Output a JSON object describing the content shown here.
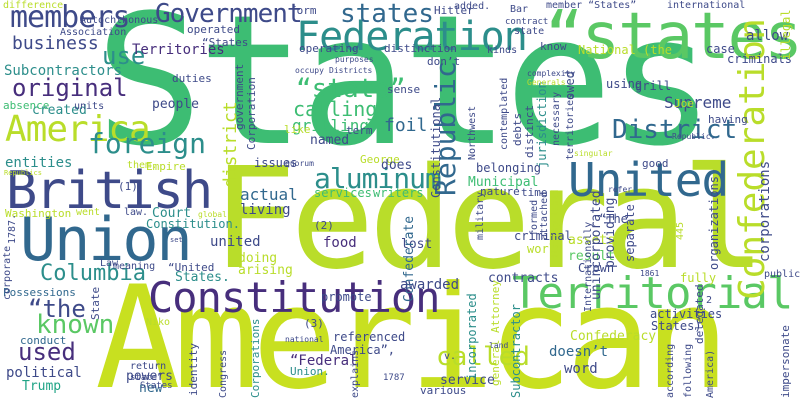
{
  "word_cloud": {
    "background": "#ffffff",
    "palette": {
      "green": "#3dbd73",
      "lime": "#b9dd2a",
      "teal": "#2c8e8b",
      "blue": "#31688e",
      "indigo": "#3e4a89",
      "purple": "#472e7c",
      "mint": "#5ac864",
      "sea": "#20a486"
    },
    "words": [
      {
        "id": "states-big",
        "text": "States",
        "color": "#3dbd73"
      },
      {
        "id": "federal-big",
        "text": "Federal",
        "color": "#b9dd2a"
      },
      {
        "id": "american-big",
        "text": "American",
        "color": "#c8e020"
      },
      {
        "id": "states-quoted",
        "text": "“states”",
        "color": "#5ac864"
      },
      {
        "id": "constitution",
        "text": "Constitution",
        "color": "#472e7c"
      },
      {
        "id": "territorial",
        "text": "Territorial",
        "color": "#5ac864"
      },
      {
        "id": "british",
        "text": "British",
        "color": "#3e4a89"
      },
      {
        "id": "union",
        "text": "Union",
        "color": "#31688e"
      },
      {
        "id": "united-mid",
        "text": "United",
        "color": "#31688e"
      },
      {
        "id": "federation",
        "text": "Federation",
        "color": "#2c8e8b"
      },
      {
        "id": "america",
        "text": "America",
        "color": "#b9dd2a"
      },
      {
        "id": "confederation",
        "text": "Confederation",
        "color": "#b9dd2a"
      },
      {
        "id": "members",
        "text": "members",
        "color": "#3e4a89"
      },
      {
        "id": "government",
        "text": "Government",
        "color": "#3e4a89"
      },
      {
        "id": "states-top",
        "text": "states",
        "color": "#31688e"
      },
      {
        "id": "district",
        "text": "District",
        "color": "#31688e"
      },
      {
        "id": "original",
        "text": "original",
        "color": "#472e7c"
      },
      {
        "id": "business",
        "text": "business",
        "color": "#3e4a89"
      },
      {
        "id": "use",
        "text": "use",
        "color": "#2c8e8b"
      },
      {
        "id": "foreign",
        "text": "foreign",
        "color": "#2c8e8b"
      },
      {
        "id": "aluminum",
        "text": "aluminum",
        "color": "#2c8e8b"
      },
      {
        "id": "republic",
        "text": "Republic",
        "color": "#31688e"
      },
      {
        "id": "state-quoted",
        "text": "“state”",
        "color": "#3dbd73"
      },
      {
        "id": "columbia",
        "text": "Columbia",
        "color": "#2c8e8b"
      },
      {
        "id": "the-quoted",
        "text": "“the",
        "color": "#3e4a89"
      },
      {
        "id": "known",
        "text": "known",
        "color": "#5ac864"
      },
      {
        "id": "used",
        "text": "used",
        "color": "#472e7c"
      },
      {
        "id": "called",
        "text": "called",
        "color": "#b9dd2a"
      },
      {
        "id": "territories",
        "text": "Territories",
        "color": "#472e7c"
      },
      {
        "id": "subcontractors",
        "text": "Subcontractors",
        "color": "#2c8e8b"
      },
      {
        "id": "supreme",
        "text": "Supreme",
        "color": "#3e4a89"
      },
      {
        "id": "people",
        "text": "people",
        "color": "#3e4a89"
      },
      {
        "id": "calling",
        "text": "calling",
        "color": "#3dbd73"
      },
      {
        "id": "grilling",
        "text": "grilling",
        "color": "#3dbd73"
      },
      {
        "id": "foil",
        "text": "foil",
        "color": "#31688e"
      },
      {
        "id": "named",
        "text": "named",
        "color": "#3e4a89"
      },
      {
        "id": "municipal",
        "text": "Municipal",
        "color": "#3dbd73"
      },
      {
        "id": "court",
        "text": "Court",
        "color": "#2c8e8b"
      },
      {
        "id": "actual",
        "text": "actual",
        "color": "#31688e"
      },
      {
        "id": "living",
        "text": "living",
        "color": "#3e4a89"
      },
      {
        "id": "united-small",
        "text": "united",
        "color": "#3e4a89"
      },
      {
        "id": "food",
        "text": "food",
        "color": "#472e7c"
      },
      {
        "id": "lost",
        "text": "lost",
        "color": "#3e4a89"
      },
      {
        "id": "result",
        "text": "result",
        "color": "#5ac864"
      },
      {
        "id": "assets",
        "text": "assets",
        "color": "#b9dd2a"
      },
      {
        "id": "world",
        "text": "world",
        "color": "#b9dd2a"
      },
      {
        "id": "confederacy",
        "text": "Confederacy",
        "color": "#b9dd2a"
      },
      {
        "id": "doesnt",
        "text": "doesn’t",
        "color": "#31688e"
      },
      {
        "id": "word",
        "text": "word",
        "color": "#3e4a89"
      },
      {
        "id": "service",
        "text": "service",
        "color": "#3e4a89"
      },
      {
        "id": "federal-quoted",
        "text": "“Federal",
        "color": "#472e7c"
      },
      {
        "id": "political",
        "text": "political",
        "color": "#3e4a89"
      },
      {
        "id": "trump",
        "text": "Trump",
        "color": "#20a486"
      },
      {
        "id": "conduct",
        "text": "conduct",
        "color": "#31688e"
      },
      {
        "id": "possessions",
        "text": "Possessions",
        "color": "#31688e"
      },
      {
        "id": "corporations",
        "text": "corporations",
        "color": "#3e4a89"
      },
      {
        "id": "confederate",
        "text": "Confederate",
        "color": "#31688e"
      },
      {
        "id": "entities",
        "text": "entities",
        "color": "#2c8e8b"
      },
      {
        "id": "created",
        "text": "created",
        "color": "#2c8e8b"
      },
      {
        "id": "absence",
        "text": "absence",
        "color": "#3dbd73"
      },
      {
        "id": "new",
        "text": "new",
        "color": "#31688e"
      },
      {
        "id": "powers",
        "text": "powers",
        "color": "#3e4a89"
      },
      {
        "id": "union-small",
        "text": "Union.",
        "color": "#2c8e8b"
      },
      {
        "id": "contracts",
        "text": "contracts",
        "color": "#3e4a89"
      },
      {
        "id": "awarded",
        "text": "awarded",
        "color": "#3e4a89"
      },
      {
        "id": "crown",
        "text": "Crown",
        "color": "#3e4a89"
      },
      {
        "id": "doing",
        "text": "doing",
        "color": "#b9dd2a"
      },
      {
        "id": "arising",
        "text": "arising",
        "color": "#b9dd2a"
      },
      {
        "id": "states-dot",
        "text": "States.",
        "color": "#2c8e8b"
      },
      {
        "id": "united-quoted",
        "text": "“United",
        "color": "#3e4a89"
      },
      {
        "id": "empire",
        "text": "Empire",
        "color": "#b9dd2a"
      },
      {
        "id": "hitler",
        "text": "Hitler",
        "color": "#3e4a89"
      },
      {
        "id": "term",
        "text": "term",
        "color": "#3e4a89"
      },
      {
        "id": "distinction",
        "text": "distinction",
        "color": "#3e4a89"
      },
      {
        "id": "operating",
        "text": "operating",
        "color": "#3e4a89"
      },
      {
        "id": "operated",
        "text": "operated",
        "color": "#3e4a89"
      },
      {
        "id": "duties",
        "text": "duties",
        "color": "#3e4a89"
      },
      {
        "id": "criminal",
        "text": "criminal",
        "color": "#3e4a89"
      },
      {
        "id": "the-quoted-2",
        "text": "“The",
        "color": "#3e4a89"
      },
      {
        "id": "allow",
        "text": "allow",
        "color": "#3e4a89"
      },
      {
        "id": "criminals",
        "text": "criminals",
        "color": "#3e4a89"
      },
      {
        "id": "illegal",
        "text": "illegal",
        "color": "#b9dd2a"
      },
      {
        "id": "grill",
        "text": "grill",
        "color": "#3e4a89"
      },
      {
        "id": "case",
        "text": "case",
        "color": "#3e4a89"
      },
      {
        "id": "international",
        "text": "international",
        "color": "#3e4a89"
      },
      {
        "id": "member-states",
        "text": "member “States”",
        "color": "#3e4a89"
      },
      {
        "id": "difference",
        "text": "difference",
        "color": "#b9dd2a"
      },
      {
        "id": "autochthonous",
        "text": "Autochthonous",
        "color": "#3e4a89"
      },
      {
        "id": "association",
        "text": "Association",
        "color": "#3e4a89"
      },
      {
        "id": "national-the",
        "text": "National (the",
        "color": "#b9dd2a"
      },
      {
        "id": "using",
        "text": "using",
        "color": "#3e4a89"
      },
      {
        "id": "having",
        "text": "having",
        "color": "#3e4a89"
      },
      {
        "id": "joe",
        "text": "Joe",
        "color": "#b9dd2a"
      },
      {
        "id": "good",
        "text": "good",
        "color": "#3e4a89"
      },
      {
        "id": "fully",
        "text": "fully",
        "color": "#b9dd2a"
      },
      {
        "id": "public",
        "text": "public",
        "color": "#3e4a89"
      },
      {
        "id": "activities",
        "text": "activities",
        "color": "#3e4a89"
      },
      {
        "id": "states-paren",
        "text": "States)",
        "color": "#3e4a89"
      },
      {
        "id": "referenced",
        "text": "referenced",
        "color": "#3e4a89"
      },
      {
        "id": "america-quoted",
        "text": "America”,",
        "color": "#3e4a89"
      },
      {
        "id": "congress",
        "text": "Congress",
        "color": "#3e4a89"
      },
      {
        "id": "promote",
        "text": "promote",
        "color": "#3e4a89"
      },
      {
        "id": "belonging",
        "text": "belonging",
        "color": "#3e4a89"
      },
      {
        "id": "services",
        "text": "services",
        "color": "#3dbd73"
      },
      {
        "id": "writers",
        "text": "writers",
        "color": "#3dbd73"
      },
      {
        "id": "issues",
        "text": "issues",
        "color": "#3e4a89"
      },
      {
        "id": "george",
        "text": "George",
        "color": "#b9dd2a"
      },
      {
        "id": "does",
        "text": "does",
        "color": "#3e4a89"
      },
      {
        "id": "sense",
        "text": "sense",
        "color": "#3e4a89"
      },
      {
        "id": "dont",
        "text": "don’t",
        "color": "#3e4a89"
      },
      {
        "id": "form",
        "text": "form",
        "color": "#3e4a89"
      },
      {
        "id": "added",
        "text": "added.",
        "color": "#3e4a89"
      },
      {
        "id": "bar",
        "text": "Bar",
        "color": "#3e4a89"
      },
      {
        "id": "kinds",
        "text": "kinds",
        "color": "#3e4a89"
      },
      {
        "id": "state-small",
        "text": "state",
        "color": "#3e4a89"
      },
      {
        "id": "know",
        "text": "know",
        "color": "#3e4a89"
      },
      {
        "id": "washington",
        "text": "Washington",
        "color": "#b9dd2a"
      },
      {
        "id": "went",
        "text": "went",
        "color": "#b9dd2a"
      },
      {
        "id": "law",
        "text": "law.",
        "color": "#3e4a89"
      },
      {
        "id": "constitution-dot",
        "text": "Constitution.",
        "color": "#2c8e8b"
      },
      {
        "id": "law-cap",
        "text": "Law",
        "color": "#3e4a89"
      },
      {
        "id": "meaning",
        "text": "meaning",
        "color": "#3e4a89"
      },
      {
        "id": "niko",
        "text": "Niko",
        "color": "#b9dd2a"
      },
      {
        "id": "n2",
        "text": "(2)",
        "color": "#3e4a89"
      },
      {
        "id": "n3",
        "text": "(3)",
        "color": "#3e4a89"
      },
      {
        "id": "n1",
        "text": "(1)",
        "color": "#3e4a89"
      },
      {
        "id": "y1787",
        "text": "1787.",
        "color": "#3e4a89"
      },
      {
        "id": "them",
        "text": "them.",
        "color": "#b9dd2a"
      },
      {
        "id": "units",
        "text": "units",
        "color": "#3e4a89"
      },
      {
        "id": "identity",
        "text": "identity",
        "color": "#3e4a89"
      },
      {
        "id": "various",
        "text": "various",
        "color": "#3e4a89"
      },
      {
        "id": "explains",
        "text": "explains",
        "color": "#3e4a89"
      },
      {
        "id": "return",
        "text": "return",
        "color": "#3e4a89"
      },
      {
        "id": "state-caps",
        "text": "State",
        "color": "#3e4a89"
      },
      {
        "id": "incorporated",
        "text": "incorporated",
        "color": "#2c8e8b"
      },
      {
        "id": "subcontractor",
        "text": "Subcontractor",
        "color": "#2c8e8b"
      },
      {
        "id": "jurisdiction",
        "text": "jurisdiction",
        "color": "#2c8e8b"
      },
      {
        "id": "district-small",
        "text": "district",
        "color": "#b9dd2a"
      },
      {
        "id": "nature",
        "text": "nature",
        "color": "#3e4a89"
      },
      {
        "id": "time",
        "text": "time",
        "color": "#3e4a89"
      },
      {
        "id": "necessary",
        "text": "necessary",
        "color": "#3e4a89"
      },
      {
        "id": "owed",
        "text": "owed",
        "color": "#3e4a89"
      },
      {
        "id": "unincorporated",
        "text": "unincorporated",
        "color": "#3e4a89"
      },
      {
        "id": "providing",
        "text": "providing",
        "color": "#3e4a89"
      },
      {
        "id": "separate",
        "text": "separate",
        "color": "#3e4a89"
      },
      {
        "id": "organizations",
        "text": "organizations",
        "color": "#3e4a89"
      },
      {
        "id": "impersonate",
        "text": "impersonate",
        "color": "#3e4a89"
      },
      {
        "id": "following",
        "text": "following",
        "color": "#3e4a89"
      },
      {
        "id": "according",
        "text": "according",
        "color": "#3e4a89"
      },
      {
        "id": "delegated",
        "text": "delegated",
        "color": "#3e4a89"
      },
      {
        "id": "america-paren",
        "text": "America)",
        "color": "#3e4a89"
      },
      {
        "id": "general-attorney",
        "text": "general Attorney",
        "color": "#b9dd2a"
      },
      {
        "id": "military",
        "text": "military",
        "color": "#3e4a89"
      },
      {
        "id": "attached",
        "text": "attached",
        "color": "#3e4a89"
      },
      {
        "id": "northwest",
        "text": "Northwest",
        "color": "#3e4a89"
      },
      {
        "id": "debts",
        "text": "debts",
        "color": "#3e4a89"
      },
      {
        "id": "distinct",
        "text": "distinct",
        "color": "#3e4a89"
      },
      {
        "id": "contemplated",
        "text": "contemplated",
        "color": "#3e4a89"
      },
      {
        "id": "territories-small",
        "text": "territories",
        "color": "#3e4a89"
      },
      {
        "id": "formed",
        "text": "formed",
        "color": "#3e4a89"
      },
      {
        "id": "distinguished",
        "text": "distinguished",
        "color": "#b9dd2a"
      },
      {
        "id": "corporation",
        "text": "Corporation",
        "color": "#3e4a89"
      },
      {
        "id": "government-small",
        "text": "government",
        "color": "#3e4a89"
      },
      {
        "id": "constitutional",
        "text": "Constitutional",
        "color": "#3e4a89"
      },
      {
        "id": "corporations-cap",
        "text": "Corporations",
        "color": "#2c8e8b"
      },
      {
        "id": "states-quote-open",
        "text": "“States",
        "color": "#3e4a89"
      },
      {
        "id": "n1787",
        "text": "1787",
        "color": "#3e4a89"
      },
      {
        "id": "v",
        "text": "v.",
        "color": "#3e4a89"
      },
      {
        "id": "like",
        "text": "like",
        "color": "#b9dd2a"
      },
      {
        "id": "republic-dot",
        "text": "Republic.",
        "color": "#3e4a89"
      },
      {
        "id": "global",
        "text": "global",
        "color": "#b9dd2a"
      },
      {
        "id": "internationally",
        "text": "Internationally",
        "color": "#3e4a89"
      },
      {
        "id": "occupy",
        "text": "occupy",
        "color": "#3e4a89"
      },
      {
        "id": "districts",
        "text": "Districts",
        "color": "#3e4a89"
      },
      {
        "id": "purposes",
        "text": "purposes",
        "color": "#3e4a89"
      },
      {
        "id": "complexity",
        "text": "complexity",
        "color": "#3e4a89"
      },
      {
        "id": "generals",
        "text": "Generals",
        "color": "#b9dd2a"
      },
      {
        "id": "contract",
        "text": "contract",
        "color": "#3e4a89"
      },
      {
        "id": "n5",
        "text": "2",
        "color": "#3e4a89"
      },
      {
        "id": "n445",
        "text": "445",
        "color": "#b9dd2a"
      },
      {
        "id": "n1861",
        "text": "1861",
        "color": "#3e4a89"
      },
      {
        "id": "land",
        "text": "land",
        "color": "#3e4a89"
      },
      {
        "id": "national",
        "text": "national",
        "color": "#3e4a89"
      },
      {
        "id": "republics",
        "text": "Republics",
        "color": "#b9dd2a"
      },
      {
        "id": "corporate",
        "text": "corporate",
        "color": "#3e4a89"
      },
      {
        "id": "set",
        "text": "set",
        "color": "#3e4a89"
      },
      {
        "id": "quorum",
        "text": "quorum",
        "color": "#3e4a89"
      },
      {
        "id": "states-quote-2",
        "text": "States",
        "color": "#3e4a89"
      },
      {
        "id": "state-quote-3",
        "text": "state”",
        "color": "#3e4a89"
      },
      {
        "id": "refer",
        "text": "refer",
        "color": "#3e4a89"
      },
      {
        "id": "singular",
        "text": "singular",
        "color": "#b9dd2a"
      }
    ]
  }
}
